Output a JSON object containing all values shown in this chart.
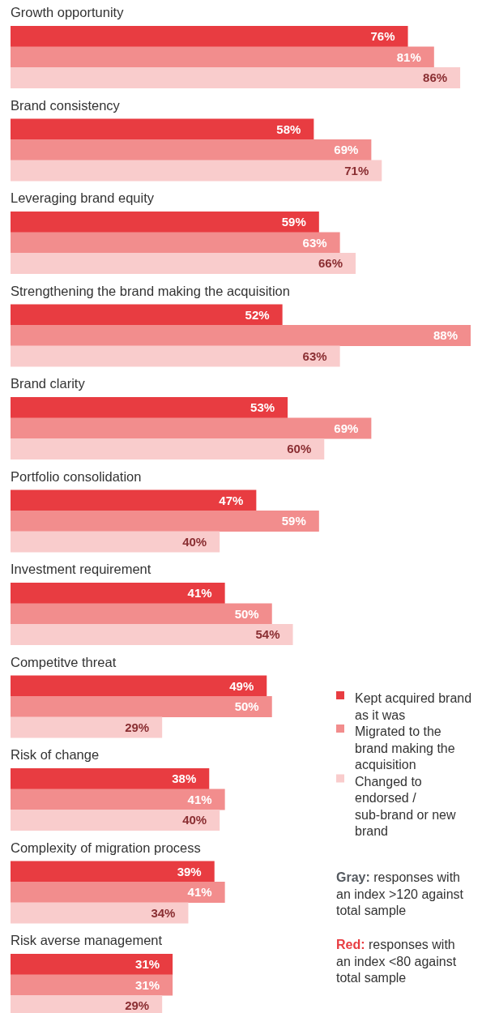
{
  "chart_data": {
    "type": "bar",
    "orientation": "horizontal",
    "legend": "bottom right",
    "categories": [
      "Growth opportunity",
      "Brand consistency",
      "Leveraging brand equity",
      "Strengthening the brand making the acquisition",
      "Brand clarity",
      "Portfolio consolidation",
      "Investment requirement",
      "Competitve threat",
      "Risk of change",
      "Complexity of migration process",
      "Risk averse management"
    ],
    "series": [
      {
        "name": "Kept acquired brand as it was",
        "color": "#e83c41",
        "values": [
          76,
          58,
          59,
          52,
          53,
          47,
          41,
          49,
          38,
          39,
          31
        ],
        "value_labels": [
          "76%",
          "58%",
          "59%",
          "52%",
          "53%",
          "47%",
          "41%",
          "49%",
          "38%",
          "39%",
          "31%"
        ]
      },
      {
        "name": "Migrated to the brand making the acquisition",
        "color": "#f28d8d",
        "values": [
          81,
          69,
          63,
          88,
          69,
          59,
          50,
          50,
          41,
          41,
          31
        ],
        "value_labels": [
          "81%",
          "69%",
          "63%",
          "88%",
          "69%",
          "59%",
          "50%",
          "50%",
          "41%",
          "41%",
          "31%"
        ]
      },
      {
        "name": "Changed to endorsed / sub-brand or new brand",
        "color": "#f9cccc",
        "values": [
          86,
          71,
          66,
          63,
          60,
          40,
          54,
          29,
          40,
          34,
          29
        ],
        "value_labels": [
          "86%",
          "71%",
          "66%",
          "63%",
          "60%",
          "40%",
          "54%",
          "29%",
          "40%",
          "34%",
          "29%"
        ]
      }
    ],
    "annotations": [
      "Gray: responses with an index >120 against total sample",
      "Red: responses with an index <80 against total sample"
    ]
  }
}
